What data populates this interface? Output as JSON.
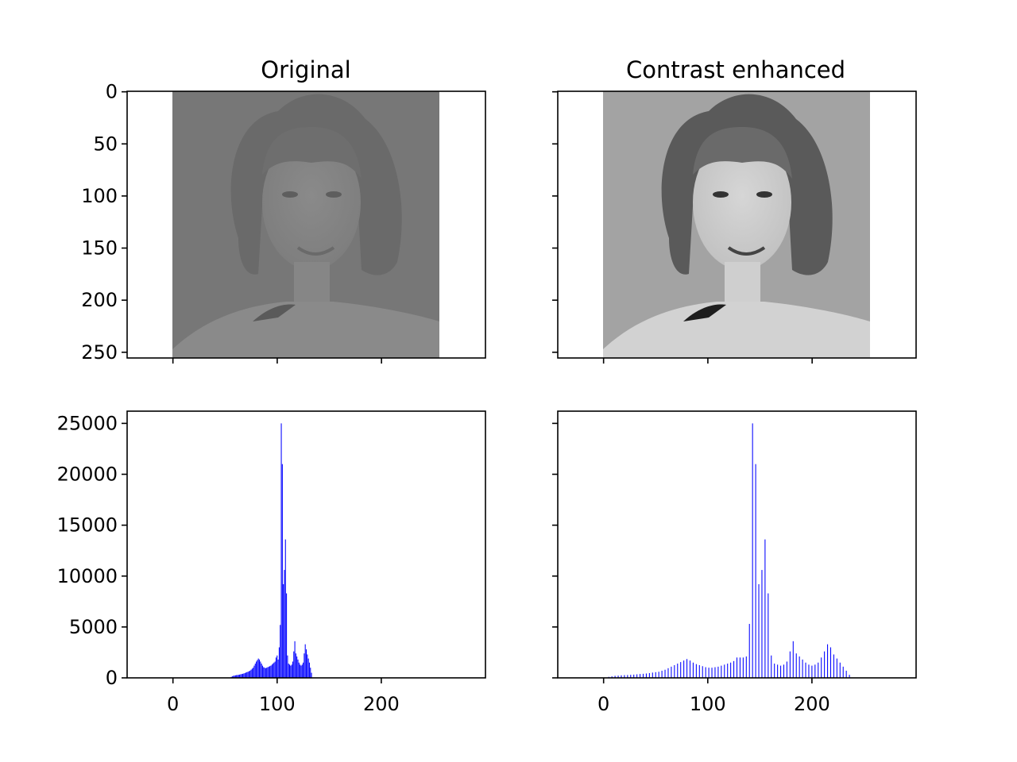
{
  "panels": {
    "original": {
      "title": "Original"
    },
    "enhanced": {
      "title": "Contrast enhanced"
    }
  },
  "image_axes": {
    "y_ticks": [
      "0",
      "50",
      "100",
      "150",
      "200",
      "250"
    ],
    "y_tick_values": [
      0,
      50,
      100,
      150,
      200,
      250
    ],
    "x_tick_values": [
      0,
      100,
      200
    ],
    "xlim": [
      -0.5,
      255.5
    ],
    "ylim": [
      255.5,
      -0.5
    ]
  },
  "images": {
    "original": {
      "description_icon": "portrait-photo-lowcontrast",
      "background_gray": "#777777"
    },
    "enhanced": {
      "description_icon": "portrait-photo-enhanced",
      "background_gray": "#a3a3a3"
    }
  },
  "chart_data": [
    {
      "type": "bar",
      "panel": "original",
      "bar_color": "#0000ff",
      "xlim": [
        -44,
        300
      ],
      "ylim": [
        0,
        26200
      ],
      "x_ticks": [
        "0",
        "100",
        "200"
      ],
      "x_tick_values": [
        0,
        100,
        200
      ],
      "y_ticks": [
        "0",
        "5000",
        "10000",
        "15000",
        "20000",
        "25000"
      ],
      "y_tick_values": [
        0,
        5000,
        10000,
        15000,
        20000,
        25000
      ],
      "x": [
        56,
        57,
        58,
        59,
        60,
        61,
        62,
        63,
        64,
        65,
        66,
        67,
        68,
        69,
        70,
        71,
        72,
        73,
        74,
        75,
        76,
        77,
        78,
        79,
        80,
        81,
        82,
        83,
        84,
        85,
        86,
        87,
        88,
        89,
        90,
        91,
        92,
        93,
        94,
        95,
        96,
        97,
        98,
        99,
        100,
        101,
        102,
        103,
        104,
        105,
        106,
        107,
        108,
        109,
        110,
        111,
        112,
        113,
        114,
        115,
        116,
        117,
        118,
        119,
        120,
        121,
        122,
        123,
        124,
        125,
        126,
        127,
        128,
        129,
        130,
        131,
        132,
        133,
        134,
        135,
        136,
        137,
        138
      ],
      "values": [
        100,
        150,
        200,
        220,
        250,
        270,
        280,
        300,
        320,
        350,
        380,
        400,
        430,
        470,
        520,
        560,
        600,
        650,
        700,
        800,
        900,
        1000,
        1200,
        1400,
        1600,
        1750,
        1900,
        1800,
        1600,
        1400,
        1200,
        1050,
        1000,
        950,
        1000,
        1050,
        1100,
        1150,
        1200,
        1300,
        1400,
        1500,
        1600,
        2000,
        2200,
        1800,
        3000,
        5200,
        25000,
        21000,
        9200,
        10600,
        13600,
        8300,
        2200,
        1400,
        1300,
        1200,
        1300,
        1600,
        2600,
        3600,
        2400,
        2100,
        1800,
        1500,
        1300,
        1200,
        1300,
        1500,
        2400,
        3300,
        2800,
        2300,
        1900,
        1500,
        1000,
        500,
        0,
        0,
        0,
        0,
        0
      ]
    },
    {
      "type": "bar",
      "panel": "enhanced",
      "bar_color": "#0000ff",
      "xlim": [
        -44,
        300
      ],
      "ylim": [
        0,
        26200
      ],
      "x_ticks": [
        "0",
        "100",
        "200"
      ],
      "x_tick_values": [
        0,
        100,
        200
      ],
      "y_ticks": [],
      "y_tick_values": [
        0,
        5000,
        10000,
        15000,
        20000,
        25000
      ],
      "x": [
        5,
        8,
        11,
        14,
        17,
        20,
        23,
        26,
        29,
        32,
        35,
        38,
        41,
        44,
        47,
        50,
        53,
        56,
        59,
        62,
        65,
        68,
        71,
        74,
        77,
        80,
        83,
        86,
        89,
        92,
        95,
        98,
        101,
        104,
        107,
        110,
        113,
        116,
        119,
        122,
        125,
        128,
        131,
        134,
        137,
        140,
        143,
        146,
        149,
        152,
        155,
        158,
        161,
        164,
        167,
        170,
        173,
        176,
        179,
        182,
        185,
        188,
        191,
        194,
        197,
        200,
        203,
        206,
        209,
        212,
        215,
        218,
        221,
        224,
        227,
        230,
        233,
        236
      ],
      "values": [
        100,
        150,
        200,
        220,
        250,
        270,
        280,
        300,
        320,
        350,
        380,
        400,
        430,
        470,
        520,
        560,
        600,
        700,
        800,
        950,
        1100,
        1250,
        1400,
        1550,
        1700,
        1850,
        1700,
        1500,
        1350,
        1250,
        1150,
        1050,
        1000,
        1000,
        1050,
        1100,
        1200,
        1300,
        1400,
        1500,
        1650,
        2000,
        2000,
        2000,
        2100,
        5300,
        25000,
        21000,
        9200,
        10600,
        13600,
        8300,
        2200,
        1400,
        1300,
        1200,
        1300,
        1600,
        2600,
        3600,
        2400,
        2100,
        1800,
        1500,
        1300,
        1200,
        1300,
        1500,
        2000,
        2600,
        3300,
        3000,
        2300,
        1900,
        1500,
        1100,
        700,
        300
      ]
    }
  ]
}
